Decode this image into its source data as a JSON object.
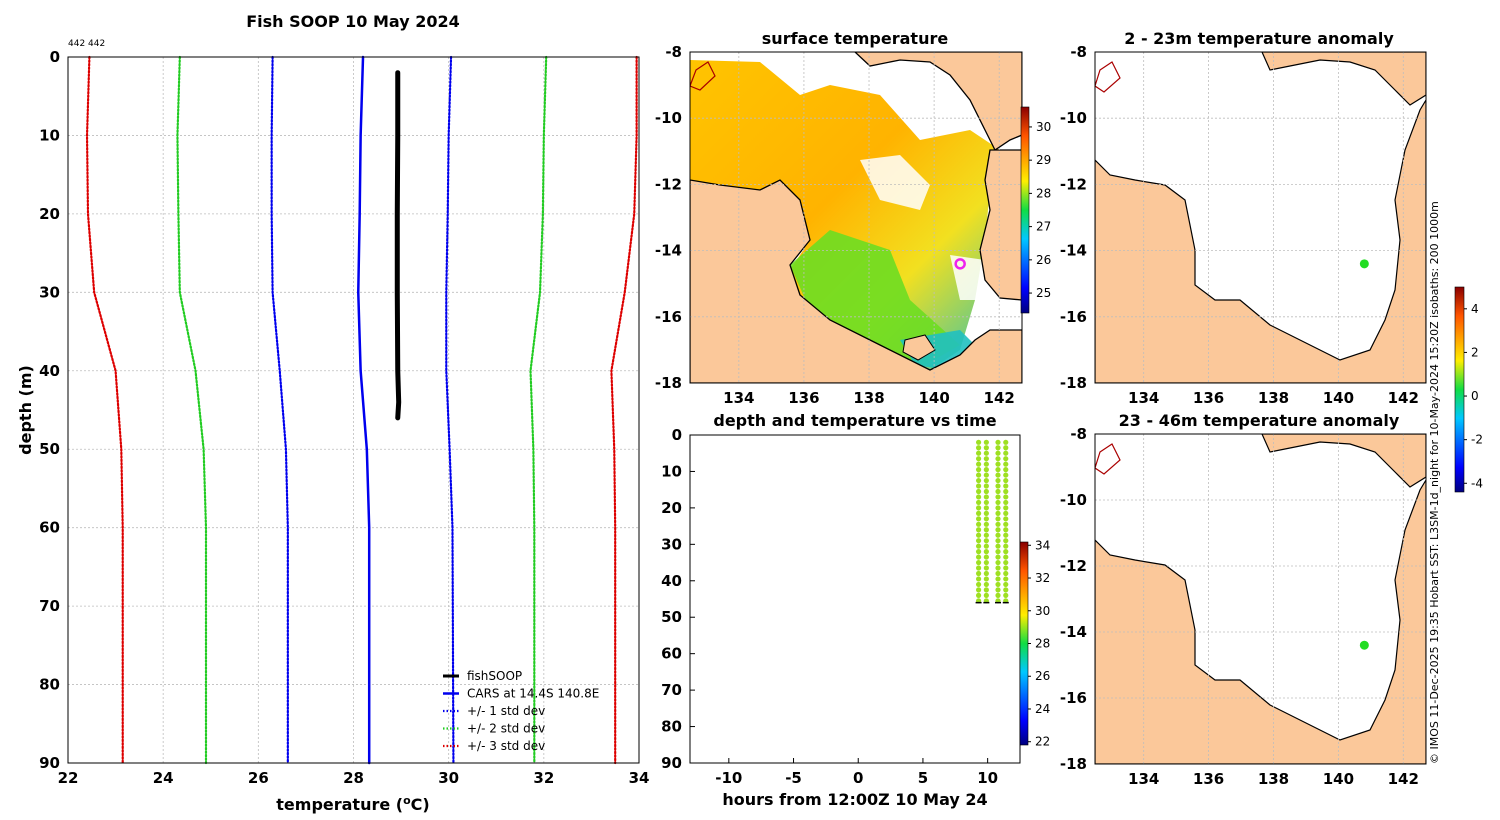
{
  "page": {
    "credit": "© IMOS 11-Dec-2025 19:35 Hobart SST: L3SM-1d_night for 10-May-2024 15:20Z isobaths: 200  1000m"
  },
  "colors": {
    "fishSOOP": "#000000",
    "cars": "#0000ee",
    "std1": "#0000ee",
    "std2": "#22cc22",
    "std3": "#dd0000",
    "land": "#fbc89a",
    "marker": "#ee22ee",
    "anomaly_dot": "#22dd22"
  },
  "chart_data": [
    {
      "type": "line",
      "id": "profile",
      "title": "Fish SOOP 10 May 2024",
      "corner_label": "442 442",
      "xlabel": "temperature (°C)",
      "xlabel_main": "temperature (",
      "xlabel_sup": "o",
      "xlabel_tail": "C)",
      "ylabel": "depth (m)",
      "xlim": [
        22,
        34
      ],
      "ylim": [
        0,
        90
      ],
      "xticks": [
        22,
        24,
        26,
        28,
        30,
        32,
        34
      ],
      "yticks": [
        0,
        10,
        20,
        30,
        40,
        50,
        60,
        70,
        80,
        90
      ],
      "legend": [
        "fishSOOP",
        "CARS at 14.4S 140.8E",
        "+/- 1 std dev",
        "+/- 2 std dev",
        "+/- 3 std dev"
      ],
      "series": [
        {
          "name": "fishSOOP",
          "style": "thick",
          "depth": [
            2,
            10,
            20,
            30,
            40,
            44,
            46
          ],
          "temp": [
            28.93,
            28.93,
            28.92,
            28.92,
            28.93,
            28.95,
            28.93
          ]
        },
        {
          "name": "CARS",
          "style": "solid",
          "depth": [
            0,
            10,
            20,
            30,
            40,
            50,
            60,
            90
          ],
          "temp": [
            28.2,
            28.15,
            28.13,
            28.1,
            28.15,
            28.28,
            28.33,
            28.33
          ]
        },
        {
          "name": "cars_minus1",
          "style": "dot1",
          "depth": [
            0,
            10,
            20,
            30,
            40,
            50,
            60,
            90
          ],
          "temp": [
            26.3,
            26.28,
            26.28,
            26.3,
            26.45,
            26.58,
            26.62,
            26.62
          ]
        },
        {
          "name": "cars_plus1",
          "style": "dot1",
          "depth": [
            0,
            10,
            20,
            30,
            40,
            50,
            60,
            90
          ],
          "temp": [
            30.05,
            30.0,
            29.98,
            29.95,
            29.95,
            30.02,
            30.08,
            30.1
          ]
        },
        {
          "name": "cars_minus2",
          "style": "dot2",
          "depth": [
            0,
            10,
            20,
            30,
            40,
            50,
            60,
            90
          ],
          "temp": [
            24.35,
            24.3,
            24.32,
            24.35,
            24.68,
            24.85,
            24.9,
            24.9
          ]
        },
        {
          "name": "cars_plus2",
          "style": "dot2",
          "depth": [
            0,
            10,
            20,
            30,
            40,
            50,
            60,
            90
          ],
          "temp": [
            32.05,
            32.0,
            31.98,
            31.92,
            31.72,
            31.78,
            31.8,
            31.8
          ]
        },
        {
          "name": "cars_minus3",
          "style": "dot3",
          "depth": [
            0,
            10,
            20,
            30,
            40,
            50,
            60,
            90
          ],
          "temp": [
            22.45,
            22.4,
            22.42,
            22.55,
            23.0,
            23.12,
            23.15,
            23.15
          ]
        },
        {
          "name": "cars_plus3",
          "style": "dot3",
          "depth": [
            0,
            10,
            20,
            30,
            40,
            50,
            60,
            90
          ],
          "temp": [
            33.95,
            33.95,
            33.9,
            33.7,
            33.42,
            33.48,
            33.5,
            33.5
          ]
        }
      ]
    },
    {
      "type": "heatmap",
      "id": "sst_map",
      "title": "surface temperature",
      "xlim": [
        132.5,
        142.7
      ],
      "ylim": [
        -18,
        -8
      ],
      "xticks": [
        134,
        136,
        138,
        140,
        142
      ],
      "yticks": [
        -8,
        -10,
        -12,
        -14,
        -16,
        -18
      ],
      "colorbar": {
        "range": [
          24.4,
          30.6
        ],
        "ticks": [
          25,
          26,
          27,
          28,
          29,
          30
        ]
      },
      "marker": {
        "lon": 140.8,
        "lat": -14.4
      }
    },
    {
      "type": "scatter",
      "id": "depth_time",
      "title": "depth and temperature vs time",
      "xlabel": "hours from 12:00Z 10 May 24",
      "xlim": [
        -13,
        12.5
      ],
      "ylim": [
        0,
        90
      ],
      "xticks": [
        -10,
        -5,
        0,
        5,
        10
      ],
      "yticks": [
        0,
        10,
        20,
        30,
        40,
        50,
        60,
        70,
        80,
        90
      ],
      "colorbar": {
        "range": [
          21.8,
          34.2
        ],
        "ticks": [
          22,
          24,
          26,
          28,
          30,
          32,
          34
        ]
      },
      "casts": [
        {
          "time": 9.3,
          "depth_range": [
            2,
            46
          ],
          "temp": 28.9
        },
        {
          "time": 9.9,
          "depth_range": [
            2,
            46
          ],
          "temp": 28.9
        },
        {
          "time": 10.8,
          "depth_range": [
            2,
            46
          ],
          "temp": 28.9
        },
        {
          "time": 11.4,
          "depth_range": [
            2,
            46
          ],
          "temp": 28.9
        }
      ]
    },
    {
      "type": "heatmap",
      "id": "anom_shallow",
      "title": "2 - 23m temperature anomaly",
      "xlim": [
        132.5,
        142.7
      ],
      "ylim": [
        -18,
        -8
      ],
      "xticks": [
        134,
        136,
        138,
        140,
        142
      ],
      "yticks": [
        -8,
        -10,
        -12,
        -14,
        -16,
        -18
      ],
      "point": {
        "lon": 140.8,
        "lat": -14.4,
        "anomaly": 0.6
      }
    },
    {
      "type": "heatmap",
      "id": "anom_deep",
      "title": "23 - 46m temperature anomaly",
      "xlim": [
        132.5,
        142.7
      ],
      "ylim": [
        -18,
        -8
      ],
      "xticks": [
        134,
        136,
        138,
        140,
        142
      ],
      "yticks": [
        -8,
        -10,
        -12,
        -14,
        -16,
        -18
      ],
      "point": {
        "lon": 140.8,
        "lat": -14.4,
        "anomaly": 0.6
      }
    },
    {
      "type": "colorbar",
      "id": "anomaly_colorbar",
      "range": [
        -4.4,
        5.0
      ],
      "ticks": [
        -4,
        -2,
        0,
        2,
        4
      ]
    }
  ]
}
